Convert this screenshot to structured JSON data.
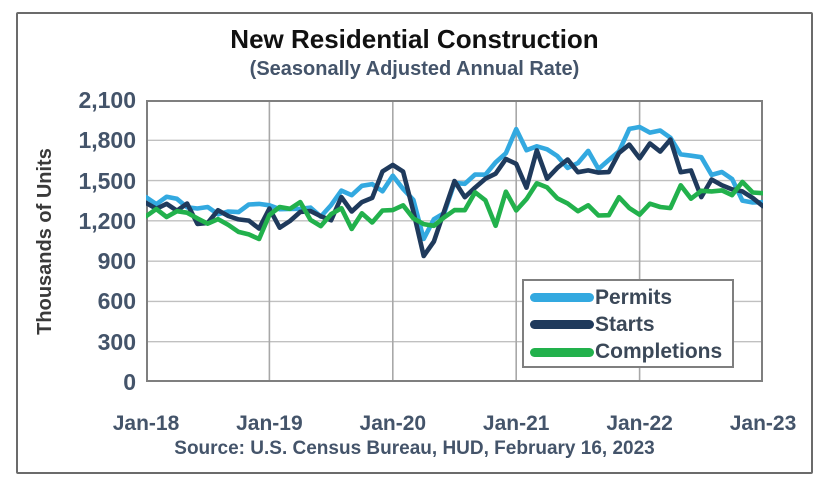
{
  "header": {
    "title": "New Residential Construction",
    "subtitle": "(Seasonally Adjusted Annual Rate)"
  },
  "footer": {
    "source": "Source:  U.S. Census Bureau, HUD, February 16, 2023"
  },
  "colors": {
    "permits": "#33a9e0",
    "starts": "#1f3a5c",
    "completions": "#22b14c",
    "tick_label": "#44546a",
    "grid_horizontal": "#c0c0c0",
    "grid_vertical": "#a8a8a8",
    "plot_border": "#7f7f7f",
    "frame_border": "#6b6b6b"
  },
  "chart_data": {
    "type": "line",
    "title": "New Residential Construction",
    "subtitle": "(Seasonally Adjusted Annual Rate)",
    "xlabel": "",
    "ylabel": "Thousands of Units",
    "ylim": [
      0,
      2100
    ],
    "ytick_step": 300,
    "yticks": [
      "2,100",
      "1,800",
      "1,500",
      "1,200",
      "900",
      "600",
      "300",
      "0"
    ],
    "xticks": [
      "Jan-18",
      "Jan-19",
      "Jan-20",
      "Jan-21",
      "Jan-22",
      "Jan-23"
    ],
    "x_frequency": "monthly",
    "x_range": "Jan-2018 to Jan-2023",
    "grid": true,
    "legend_position": "inside-lower-right",
    "units": "thousands of units",
    "series": [
      {
        "name": "Permits",
        "color": "#33a9e0",
        "values": [
          1377,
          1324,
          1379,
          1364,
          1301,
          1292,
          1303,
          1249,
          1270,
          1265,
          1322,
          1326,
          1316,
          1287,
          1288,
          1290,
          1299,
          1232,
          1317,
          1425,
          1391,
          1461,
          1474,
          1420,
          1536,
          1438,
          1356,
          1066,
          1212,
          1258,
          1483,
          1476,
          1545,
          1544,
          1635,
          1704,
          1883,
          1726,
          1755,
          1733,
          1683,
          1594,
          1630,
          1721,
          1586,
          1653,
          1717,
          1885,
          1899,
          1857,
          1873,
          1819,
          1695,
          1685,
          1674,
          1542,
          1564,
          1512,
          1351,
          1337,
          1339
        ]
      },
      {
        "name": "Starts",
        "color": "#1f3a5c",
        "values": [
          1334,
          1290,
          1327,
          1276,
          1329,
          1177,
          1184,
          1279,
          1236,
          1211,
          1202,
          1142,
          1291,
          1149,
          1199,
          1267,
          1273,
          1235,
          1204,
          1377,
          1270,
          1340,
          1371,
          1568,
          1617,
          1567,
          1269,
          938,
          1046,
          1273,
          1497,
          1376,
          1448,
          1514,
          1551,
          1661,
          1625,
          1447,
          1725,
          1514,
          1594,
          1657,
          1562,
          1576,
          1559,
          1563,
          1706,
          1768,
          1666,
          1777,
          1716,
          1805,
          1562,
          1575,
          1377,
          1508,
          1465,
          1434,
          1419,
          1371,
          1309
        ]
      },
      {
        "name": "Completions",
        "color": "#22b14c",
        "values": [
          1234,
          1288,
          1229,
          1272,
          1261,
          1218,
          1179,
          1213,
          1170,
          1118,
          1099,
          1065,
          1244,
          1303,
          1290,
          1340,
          1207,
          1161,
          1250,
          1294,
          1139,
          1256,
          1188,
          1277,
          1280,
          1316,
          1218,
          1176,
          1163,
          1226,
          1280,
          1279,
          1413,
          1353,
          1163,
          1417,
          1278,
          1362,
          1480,
          1449,
          1368,
          1330,
          1272,
          1316,
          1240,
          1242,
          1376,
          1295,
          1246,
          1328,
          1303,
          1295,
          1465,
          1365,
          1424,
          1419,
          1427,
          1392,
          1490,
          1411,
          1406
        ]
      }
    ]
  }
}
